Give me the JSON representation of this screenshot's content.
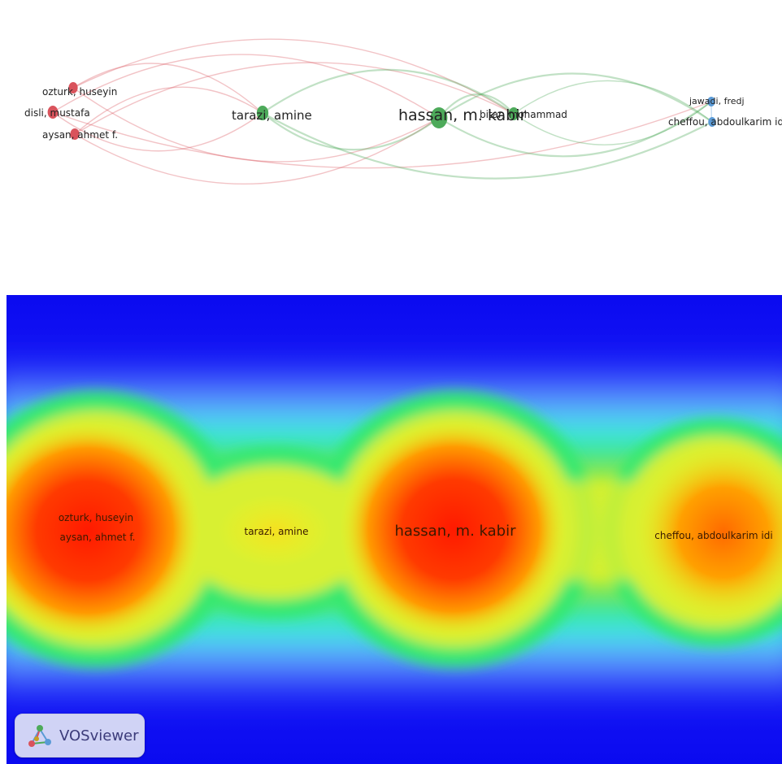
{
  "network": {
    "nodes": [
      {
        "id": "ozturk",
        "label": "ozturk, huseyin",
        "color": "#d9535c",
        "cluster": 1
      },
      {
        "id": "disli",
        "label": "disli, mustafa",
        "color": "#d9535c",
        "cluster": 1
      },
      {
        "id": "aysan",
        "label": "aysan, ahmet f.",
        "color": "#d9535c",
        "cluster": 1
      },
      {
        "id": "tarazi",
        "label": "tarazi, amine",
        "color": "#4daa5a",
        "cluster": 2
      },
      {
        "id": "hassan",
        "label": "hassan, m. kabir",
        "color": "#4daa5a",
        "cluster": 2
      },
      {
        "id": "bitar",
        "label": "bitar, mohammad",
        "color": "#4daa5a",
        "cluster": 2
      },
      {
        "id": "jawadi",
        "label": "jawadi, fredj",
        "color": "#5a9ad6",
        "cluster": 3
      },
      {
        "id": "cheffou",
        "label": "cheffou, abdoulkarim idi",
        "color": "#5a9ad6",
        "cluster": 3
      }
    ],
    "edges": [
      [
        "ozturk",
        "tarazi"
      ],
      [
        "ozturk",
        "hassan"
      ],
      [
        "ozturk",
        "bitar"
      ],
      [
        "disli",
        "tarazi"
      ],
      [
        "disli",
        "hassan"
      ],
      [
        "disli",
        "jawadi"
      ],
      [
        "aysan",
        "tarazi"
      ],
      [
        "aysan",
        "hassan"
      ],
      [
        "aysan",
        "bitar"
      ],
      [
        "tarazi",
        "hassan"
      ],
      [
        "tarazi",
        "bitar"
      ],
      [
        "tarazi",
        "cheffou"
      ],
      [
        "hassan",
        "bitar"
      ],
      [
        "hassan",
        "jawadi"
      ],
      [
        "hassan",
        "cheffou"
      ],
      [
        "bitar",
        "jawadi"
      ],
      [
        "bitar",
        "cheffou"
      ],
      [
        "jawadi",
        "cheffou"
      ]
    ]
  },
  "density": {
    "labels": [
      {
        "id": "d-ozturk",
        "text": "ozturk, huseyin"
      },
      {
        "id": "d-aysan",
        "text": "aysan, ahmet f."
      },
      {
        "id": "d-tarazi",
        "text": "tarazi, amine"
      },
      {
        "id": "d-hassan",
        "text": "hassan, m. kabir"
      },
      {
        "id": "d-cheffou",
        "text": "cheffou, abdoulkarim idi"
      }
    ]
  },
  "badge": {
    "text": "VOSviewer"
  }
}
